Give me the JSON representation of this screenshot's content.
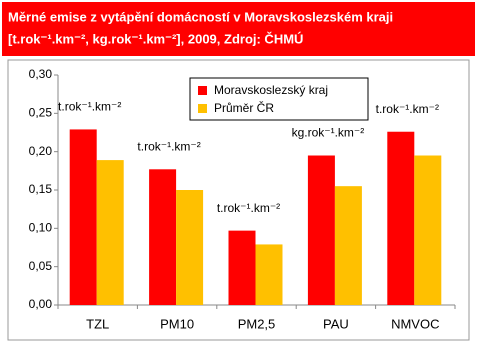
{
  "chart_data": {
    "type": "bar",
    "title": [
      "Měrné emise z vytápění domácností v Moravskoslezském kraji",
      "[t.rok⁻¹.km⁻², kg.rok⁻¹.km⁻²], 2009, Zdroj: ČHMÚ"
    ],
    "categories": [
      "TZL",
      "PM10",
      "PM2,5",
      "PAU",
      "NMVOC"
    ],
    "series": [
      {
        "name": "Moravskoslezský kraj",
        "color": "#ff0000",
        "values": [
          0.229,
          0.177,
          0.097,
          0.195,
          0.226
        ]
      },
      {
        "name": "Průměr ČR",
        "color": "#ffc000",
        "values": [
          0.189,
          0.15,
          0.079,
          0.155,
          0.195
        ]
      }
    ],
    "annotations": [
      "t.rok⁻¹.km⁻²",
      "t.rok⁻¹.km⁻²",
      "t.rok⁻¹.km⁻²",
      "kg.rok⁻¹.km⁻²",
      "t.rok⁻¹.km⁻²"
    ],
    "ylim": [
      0,
      0.3
    ],
    "yticks": [
      {
        "value": 0,
        "label": "0,00"
      },
      {
        "value": 0.05,
        "label": "0,05"
      },
      {
        "value": 0.1,
        "label": "0,10"
      },
      {
        "value": 0.15,
        "label": "0,15"
      },
      {
        "value": 0.2,
        "label": "0,20"
      },
      {
        "value": 0.25,
        "label": "0,25"
      },
      {
        "value": 0.3,
        "label": "0,30"
      }
    ],
    "grid": false
  }
}
